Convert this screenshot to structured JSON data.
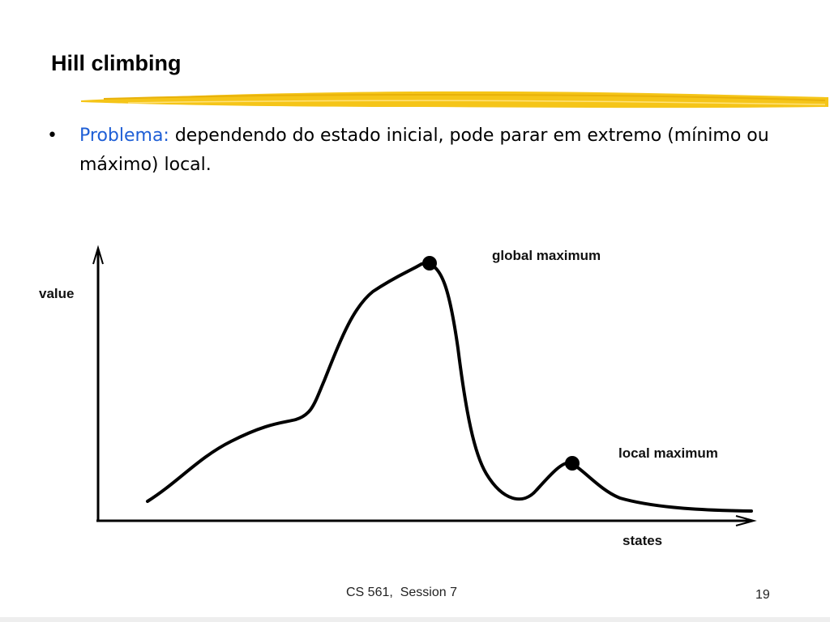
{
  "slide": {
    "title": "Hill climbing",
    "bullet": {
      "symbol": "•",
      "keyword": "Problema:",
      "text": " dependendo do estado inicial, pode parar em extremo (mínimo ou máximo) local."
    }
  },
  "diagram": {
    "y_axis_label": "value",
    "x_axis_label": "states",
    "global_max_label": "global maximum",
    "local_max_label": "local maximum"
  },
  "footer": {
    "course": "CS 561,  Session 7",
    "page": "19"
  },
  "colors": {
    "title_underline": "#f5c518",
    "keyword": "#1f5fd6"
  }
}
